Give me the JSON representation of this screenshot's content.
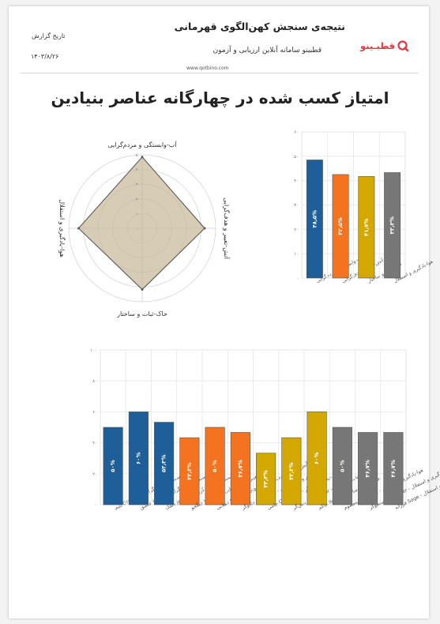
{
  "header": {
    "title": "نتیجه‌ی سنجش کهن‌الگوی قهرمانی",
    "subtitle": "قطبینو سامانه آنلاین ارزیابی و آزمون",
    "website": "www.qotbino.com",
    "date_label": "تاریخ گزارش",
    "date_value": "۱۴۰۳/۸/۲۶",
    "logo_text": "قطبـینو",
    "brand_color": "#e8343f"
  },
  "main_title": "امتیاز کسب شده در چهارگانه عناصر بنیادین",
  "colors": {
    "water": "#1f5f99",
    "fire": "#f47320",
    "earth": "#d3a800",
    "air": "#777777",
    "radar_fill": "#c8b99a",
    "grid": "#e6e6e6"
  },
  "chart_data": [
    {
      "type": "radar",
      "axes": [
        "آب-وابستگی و مردم‌گرایی",
        "آتش-تغییر و هدف‌گرایی",
        "خاک-ثبات و ساختار",
        "هوا-یادگیری و استقلال"
      ],
      "values": [
        48.5,
        42.5,
        41.7,
        43.3
      ],
      "r_ticks": [
        "۰",
        "۱۰",
        "۲۰",
        "۳۰",
        "۴۰",
        "۵۰"
      ],
      "rlim": [
        0,
        50
      ]
    },
    {
      "type": "bar",
      "categories": [
        "آب-وابستگی و مردم‌گرایی",
        "آتش-تغییر و هدف‌گرایی",
        "خاک-ثبات و ساختار",
        "هوا-یادگیری و استقلال"
      ],
      "values": [
        48.5,
        42.5,
        41.7,
        43.3
      ],
      "data_labels": [
        "۴۸٫۵%",
        "۴۲٫۵%",
        "۴۱٫۷%",
        "۴۳٫۳%"
      ],
      "color_keys": [
        "water",
        "fire",
        "earth",
        "air"
      ],
      "yticks": [
        "۰",
        "۱۰",
        "۲۰",
        "۳۰",
        "۴۰",
        "۵۰",
        "۶۰"
      ],
      "ylim": [
        0,
        60
      ],
      "grid": true
    },
    {
      "type": "bar",
      "categories": [
        "آب-وابستگی و مردم‌گرایی - Orphan یتیم",
        "آب-وابستگی و مردم‌گرایی - Lover عاشق",
        "آب-وابستگی و مردم‌گرایی - Jester دلقک",
        "آتش-تغییر و هدف‌گرایی - Warrior جنگجو",
        "آتش-تغییر و هدف‌گرایی - Revolutionary انقلابی",
        "آتش-تغییر و هدف‌گرایی - Magician جادوگر",
        "خاک-ثبات و ساختار - Caregiver حامی",
        "خاک-ثبات و ساختار - Creator آفرینش‌گر",
        "خاک-ثبات و ساختار - Ruler حاکم",
        "هوا-یادگیری و استقلال - Innocent معصوم",
        "هوا-یادگیری و استقلال - Explorer جستجوگر",
        "هوا-یادگیری و استقلال - Sage فرزانه"
      ],
      "values": [
        50,
        60,
        53.3,
        43.3,
        50,
        46.7,
        33.3,
        43.3,
        60,
        50,
        46.7,
        46.7
      ],
      "data_labels": [
        "۵۰%",
        "۶۰%",
        "۵۳٫۳%",
        "۴۳٫۳%",
        "۵۰%",
        "۴۶٫۷%",
        "۳۳٫۳%",
        "۴۳٫۳%",
        "۶۰%",
        "۵۰%",
        "۴۶٫۷%",
        "۴۶٫۷%"
      ],
      "color_keys": [
        "water",
        "water",
        "water",
        "fire",
        "fire",
        "fire",
        "earth",
        "earth",
        "earth",
        "air",
        "air",
        "air"
      ],
      "yticks": [
        "۰",
        "۲۰",
        "۴۰",
        "۶۰",
        "۸۰",
        "۱۰۰"
      ],
      "ylim": [
        0,
        100
      ],
      "grid": true
    }
  ]
}
